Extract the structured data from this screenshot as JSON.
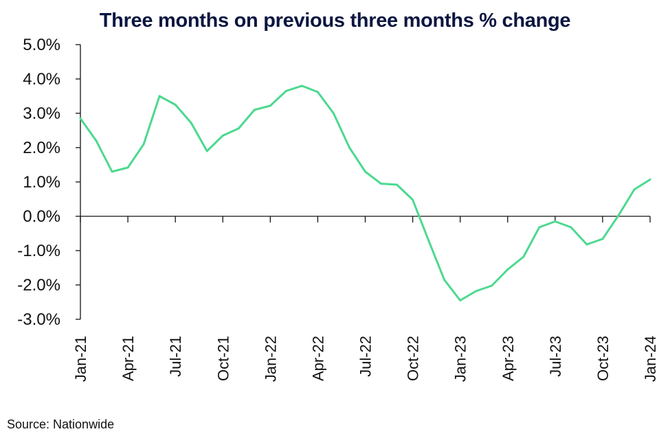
{
  "source_note": "Source: Nationwide",
  "chart_data": {
    "type": "line",
    "title": "Three months on previous three months % change",
    "xlabel": "",
    "ylabel": "",
    "ylim": [
      -3.0,
      5.0
    ],
    "yticks": [
      5.0,
      4.0,
      3.0,
      2.0,
      1.0,
      0.0,
      -1.0,
      -2.0,
      -3.0
    ],
    "ytick_labels": [
      "5.0%",
      "4.0%",
      "3.0%",
      "2.0%",
      "1.0%",
      "0.0%",
      "-1.0%",
      "-2.0%",
      "-3.0%"
    ],
    "xtick_labels": [
      "Jan-21",
      "Apr-21",
      "Jul-21",
      "Oct-21",
      "Jan-22",
      "Apr-22",
      "Jul-22",
      "Oct-22",
      "Jan-23",
      "Apr-23",
      "Jul-23",
      "Oct-23",
      "Jan-24"
    ],
    "x": [
      "Jan-21",
      "Feb-21",
      "Mar-21",
      "Apr-21",
      "May-21",
      "Jun-21",
      "Jul-21",
      "Aug-21",
      "Sep-21",
      "Oct-21",
      "Nov-21",
      "Dec-21",
      "Jan-22",
      "Feb-22",
      "Mar-22",
      "Apr-22",
      "May-22",
      "Jun-22",
      "Jul-22",
      "Aug-22",
      "Sep-22",
      "Oct-22",
      "Nov-22",
      "Dec-22",
      "Jan-23",
      "Feb-23",
      "Mar-23",
      "Apr-23",
      "May-23",
      "Jun-23",
      "Jul-23",
      "Aug-23",
      "Sep-23",
      "Oct-23",
      "Nov-23",
      "Dec-23",
      "Jan-24"
    ],
    "series": [
      {
        "color": "#4cd98f",
        "values": [
          2.85,
          2.2,
          1.3,
          1.42,
          2.1,
          3.5,
          3.25,
          2.72,
          1.9,
          2.35,
          2.56,
          3.1,
          3.22,
          3.65,
          3.8,
          3.62,
          3.0,
          2.0,
          1.3,
          0.95,
          0.92,
          0.48,
          -0.7,
          -1.85,
          -2.45,
          -2.18,
          -2.02,
          -1.55,
          -1.18,
          -0.32,
          -0.15,
          -0.32,
          -0.82,
          -0.66,
          0.02,
          0.78,
          1.07
        ]
      }
    ],
    "grid": false,
    "axis_color": "#111111"
  }
}
